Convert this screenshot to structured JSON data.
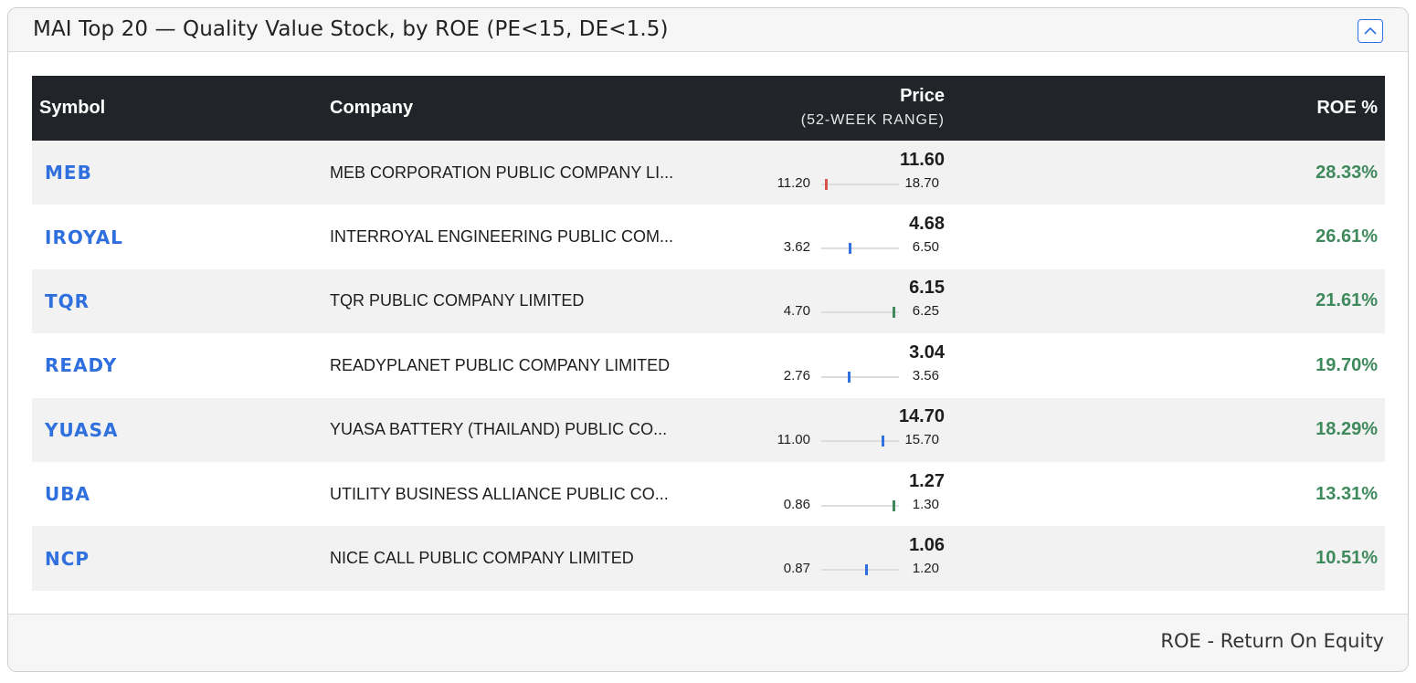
{
  "widget": {
    "title": "MAI Top 20 — Quality Value Stock, by ROE (PE<15, DE<1.5)",
    "collapse_icon": "chevron-up-icon",
    "footer_note": "ROE - Return On Equity"
  },
  "table": {
    "headers": {
      "symbol": "Symbol",
      "company": "Company",
      "price": "Price",
      "price_sub": "(52-WEEK RANGE)",
      "roe": "ROE %"
    },
    "rows": [
      {
        "symbol": "MEB",
        "company": "MEB CORPORATION PUBLIC COMPANY LI...",
        "price": "11.60",
        "low": "11.20",
        "high": "18.70",
        "range_fraction": 0.053,
        "marker_color": "#d9534f",
        "roe": "28.33%"
      },
      {
        "symbol": "IROYAL",
        "company": "INTERROYAL ENGINEERING PUBLIC COM...",
        "price": "4.68",
        "low": "3.62",
        "high": "6.50",
        "range_fraction": 0.368,
        "marker_color": "#2f6fde",
        "roe": "26.61%"
      },
      {
        "symbol": "TQR",
        "company": "TQR PUBLIC COMPANY LIMITED",
        "price": "6.15",
        "low": "4.70",
        "high": "6.25",
        "range_fraction": 0.935,
        "marker_color": "#3f8a5c",
        "roe": "21.61%"
      },
      {
        "symbol": "READY",
        "company": "READYPLANET PUBLIC COMPANY LIMITED",
        "price": "3.04",
        "low": "2.76",
        "high": "3.56",
        "range_fraction": 0.35,
        "marker_color": "#2f6fde",
        "roe": "19.70%"
      },
      {
        "symbol": "YUASA",
        "company": "YUASA BATTERY (THAILAND) PUBLIC CO...",
        "price": "14.70",
        "low": "11.00",
        "high": "15.70",
        "range_fraction": 0.787,
        "marker_color": "#2f6fde",
        "roe": "18.29%"
      },
      {
        "symbol": "UBA",
        "company": "UTILITY BUSINESS ALLIANCE PUBLIC CO...",
        "price": "1.27",
        "low": "0.86",
        "high": "1.30",
        "range_fraction": 0.932,
        "marker_color": "#3f8a5c",
        "roe": "13.31%"
      },
      {
        "symbol": "NCP",
        "company": "NICE CALL PUBLIC COMPANY LIMITED",
        "price": "1.06",
        "low": "0.87",
        "high": "1.20",
        "range_fraction": 0.576,
        "marker_color": "#2f6fde",
        "roe": "10.51%"
      }
    ]
  },
  "colors": {
    "header_bg": "#212529",
    "link": "#2f6fde",
    "roe_positive": "#3f8a5c"
  }
}
